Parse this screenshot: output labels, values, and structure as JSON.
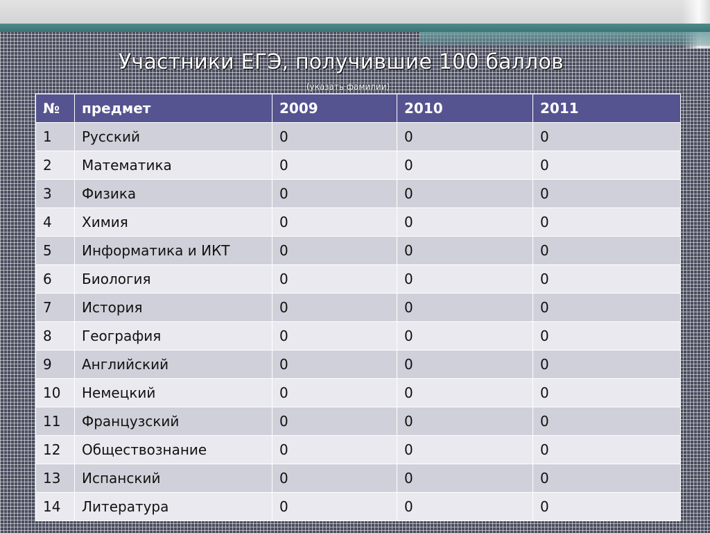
{
  "slide": {
    "title": "Участники ЕГЭ, получившие 100 баллов",
    "subtitle": "(указать фамилии)"
  },
  "colors": {
    "header_bg": "#565391",
    "row_odd": "#d0d0da",
    "row_even": "#e9e9ef",
    "accent_teal": "#4f8a8b"
  },
  "table": {
    "headers": [
      "№",
      "предмет",
      "2009",
      "2010",
      "2011"
    ],
    "rows": [
      [
        "1",
        "Русский",
        "0",
        "0",
        "0"
      ],
      [
        "2",
        "Математика",
        "0",
        "0",
        "0"
      ],
      [
        "3",
        "Физика",
        "0",
        "0",
        "0"
      ],
      [
        "4",
        "Химия",
        "0",
        "0",
        "0"
      ],
      [
        "5",
        "Информатика и ИКТ",
        "0",
        "0",
        "0"
      ],
      [
        "6",
        "Биология",
        "0",
        "0",
        "0"
      ],
      [
        "7",
        "История",
        "0",
        "0",
        "0"
      ],
      [
        "8",
        "География",
        "0",
        "0",
        "0"
      ],
      [
        "9",
        "Английский",
        "0",
        "0",
        "0"
      ],
      [
        "10",
        "Немецкий",
        "0",
        "0",
        "0"
      ],
      [
        "11",
        "Французский",
        "0",
        "0",
        "0"
      ],
      [
        "12",
        "Обществознание",
        "0",
        "0",
        "0"
      ],
      [
        "13",
        "Испанский",
        "0",
        "0",
        "0"
      ],
      [
        "14",
        "Литература",
        "0",
        "0",
        "0"
      ]
    ]
  }
}
